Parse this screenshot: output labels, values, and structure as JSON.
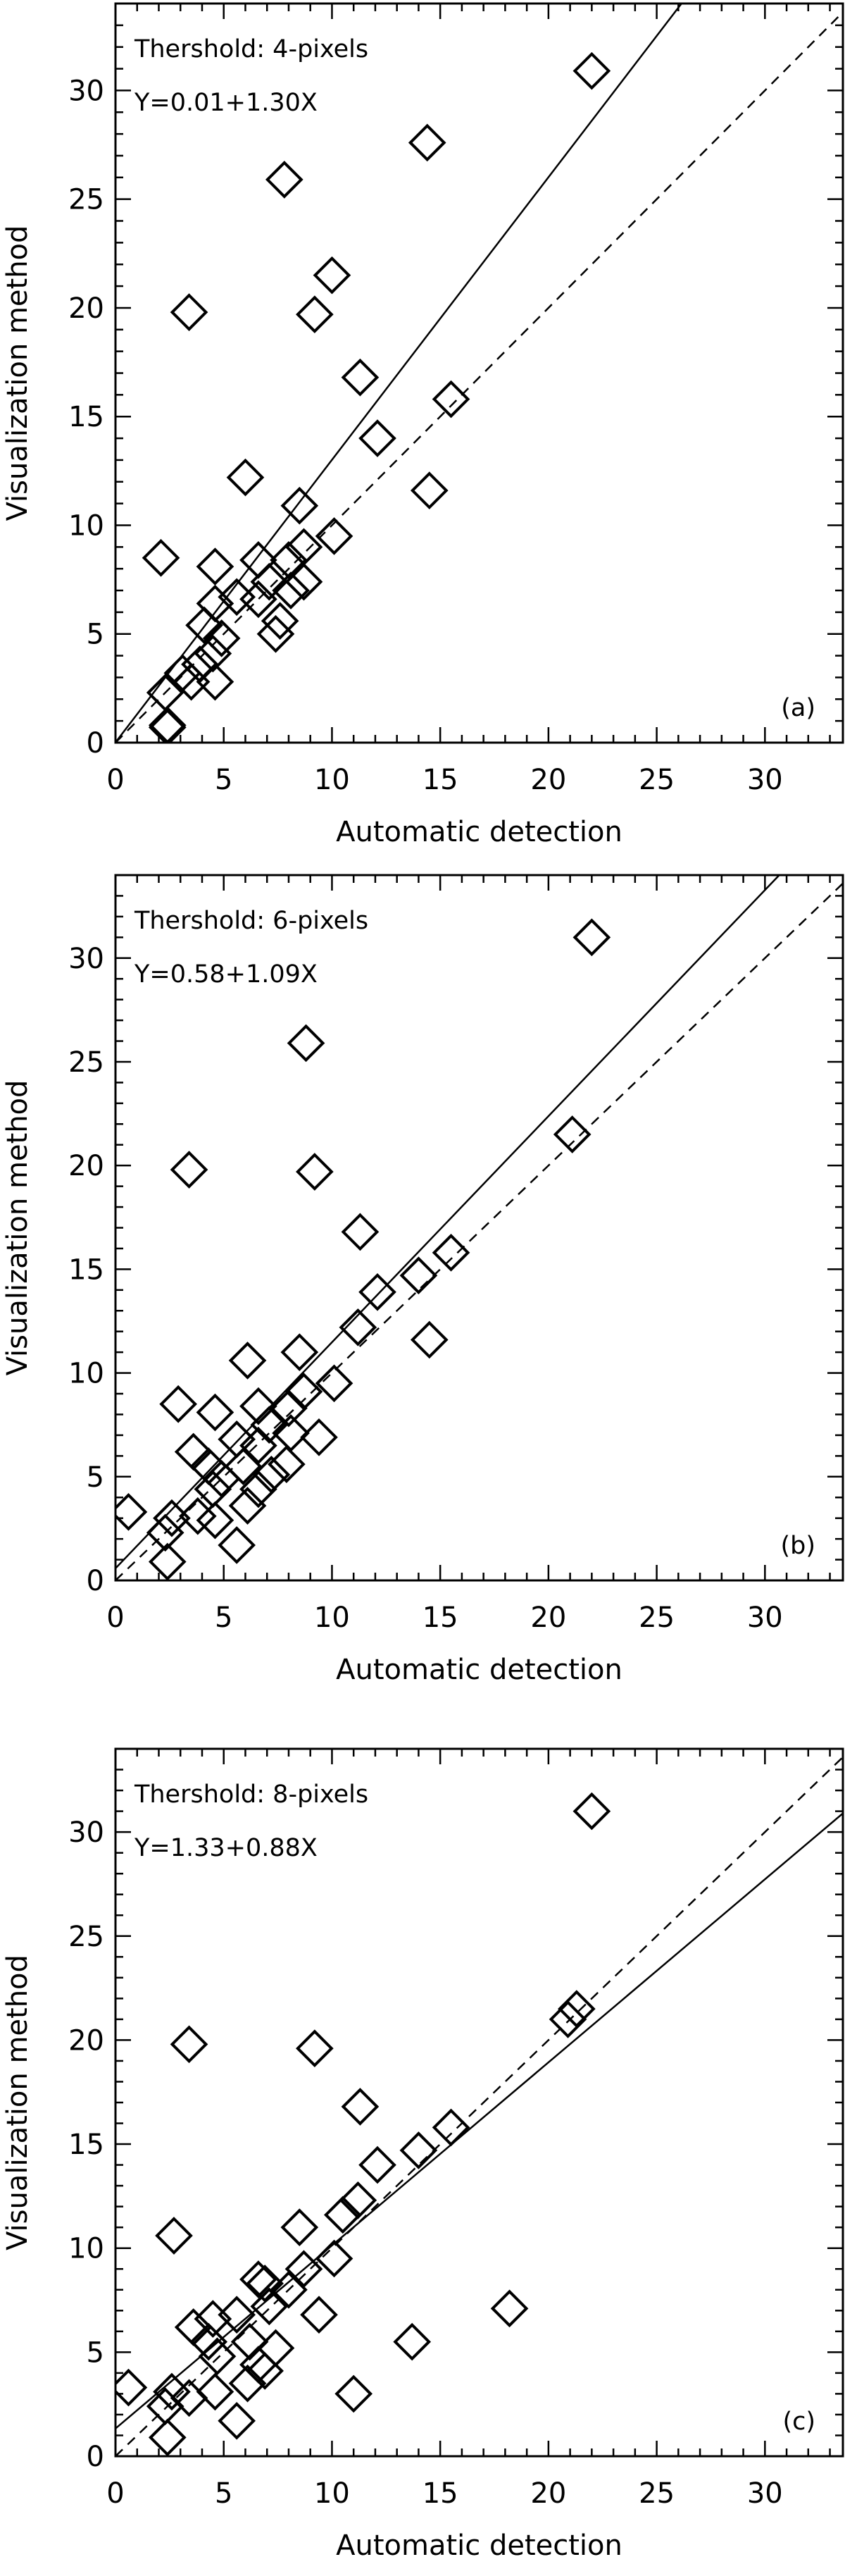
{
  "chart_data": [
    {
      "type": "scatter",
      "panel_label": "(a)",
      "annotation_threshold": "Thershold: 4-pixels",
      "annotation_fit": "Y=0.01+1.30X",
      "xlabel": "Automatic detection",
      "ylabel": "Visualization method",
      "xlim": [
        0,
        33.6
      ],
      "ylim": [
        0,
        34
      ],
      "xticks": [
        "0",
        "5",
        "10",
        "15",
        "20",
        "25",
        "30"
      ],
      "yticks": [
        "0",
        "5",
        "10",
        "15",
        "20",
        "25",
        "30"
      ],
      "marker": "diamond-open",
      "fit_line": {
        "intercept": 0.01,
        "slope": 1.3,
        "style": "solid"
      },
      "reference_line": {
        "intercept": 0,
        "slope": 1,
        "style": "dashed"
      },
      "points": [
        [
          22.0,
          30.9
        ],
        [
          14.4,
          27.6
        ],
        [
          7.8,
          25.9
        ],
        [
          10.0,
          21.5
        ],
        [
          3.4,
          19.8
        ],
        [
          9.2,
          19.7
        ],
        [
          11.3,
          16.8
        ],
        [
          15.5,
          15.8
        ],
        [
          12.1,
          14.0
        ],
        [
          6.0,
          12.2
        ],
        [
          14.5,
          11.6
        ],
        [
          8.5,
          10.9
        ],
        [
          10.1,
          9.5
        ],
        [
          2.1,
          8.5
        ],
        [
          4.6,
          8.1
        ],
        [
          6.6,
          8.4
        ],
        [
          8.7,
          9.0
        ],
        [
          8.0,
          8.4
        ],
        [
          7.1,
          7.4
        ],
        [
          5.6,
          6.7
        ],
        [
          6.6,
          6.6
        ],
        [
          8.7,
          7.4
        ],
        [
          8.1,
          7.0
        ],
        [
          4.6,
          6.4
        ],
        [
          4.1,
          5.4
        ],
        [
          7.6,
          5.6
        ],
        [
          7.4,
          5.0
        ],
        [
          4.9,
          4.8
        ],
        [
          4.5,
          4.1
        ],
        [
          3.9,
          3.6
        ],
        [
          3.1,
          3.2
        ],
        [
          3.5,
          2.8
        ],
        [
          4.6,
          2.8
        ],
        [
          2.3,
          2.3
        ],
        [
          2.4,
          0.8
        ],
        [
          2.4,
          0.7
        ]
      ]
    },
    {
      "type": "scatter",
      "panel_label": "(b)",
      "annotation_threshold": "Thershold: 6-pixels",
      "annotation_fit": "Y=0.58+1.09X",
      "xlabel": "Automatic detection",
      "ylabel": "Visualization method",
      "xlim": [
        0,
        33.6
      ],
      "ylim": [
        0,
        34
      ],
      "xticks": [
        "0",
        "5",
        "10",
        "15",
        "20",
        "25",
        "30"
      ],
      "yticks": [
        "0",
        "5",
        "10",
        "15",
        "20",
        "25",
        "30"
      ],
      "marker": "diamond-open",
      "fit_line": {
        "intercept": 0.58,
        "slope": 1.09,
        "style": "solid"
      },
      "reference_line": {
        "intercept": 0,
        "slope": 1,
        "style": "dashed"
      },
      "points": [
        [
          22.0,
          31.0
        ],
        [
          8.8,
          25.9
        ],
        [
          3.4,
          19.8
        ],
        [
          9.2,
          19.7
        ],
        [
          21.1,
          21.5
        ],
        [
          11.3,
          16.8
        ],
        [
          15.5,
          15.8
        ],
        [
          14.0,
          14.7
        ],
        [
          12.1,
          13.9
        ],
        [
          11.2,
          12.2
        ],
        [
          6.1,
          10.6
        ],
        [
          14.5,
          11.6
        ],
        [
          8.5,
          11.0
        ],
        [
          10.1,
          9.5
        ],
        [
          2.9,
          8.5
        ],
        [
          4.6,
          8.1
        ],
        [
          6.6,
          8.4
        ],
        [
          8.7,
          9.1
        ],
        [
          8.0,
          8.3
        ],
        [
          9.4,
          6.9
        ],
        [
          7.1,
          7.5
        ],
        [
          8.1,
          7.1
        ],
        [
          5.6,
          6.8
        ],
        [
          6.6,
          6.5
        ],
        [
          3.6,
          6.2
        ],
        [
          5.9,
          5.5
        ],
        [
          7.9,
          5.6
        ],
        [
          7.2,
          5.1
        ],
        [
          4.3,
          5.5
        ],
        [
          4.9,
          4.9
        ],
        [
          4.5,
          4.4
        ],
        [
          6.6,
          4.4
        ],
        [
          6.1,
          3.6
        ],
        [
          0.6,
          3.3
        ],
        [
          3.8,
          3.1
        ],
        [
          4.6,
          2.9
        ],
        [
          2.6,
          3.0
        ],
        [
          2.3,
          2.3
        ],
        [
          5.6,
          1.7
        ],
        [
          2.4,
          0.9
        ]
      ]
    },
    {
      "type": "scatter",
      "panel_label": "(c)",
      "annotation_threshold": "Thershold: 8-pixels",
      "annotation_fit": "Y=1.33+0.88X",
      "xlabel": "Automatic detection",
      "ylabel": "Visualization method",
      "xlim": [
        0,
        33.6
      ],
      "ylim": [
        0,
        34
      ],
      "xticks": [
        "0",
        "5",
        "10",
        "15",
        "20",
        "25",
        "30"
      ],
      "yticks": [
        "0",
        "5",
        "10",
        "15",
        "20",
        "25",
        "30"
      ],
      "marker": "diamond-open",
      "fit_line": {
        "intercept": 1.33,
        "slope": 0.88,
        "style": "solid"
      },
      "reference_line": {
        "intercept": 0,
        "slope": 1,
        "style": "dashed"
      },
      "points": [
        [
          22.0,
          31.0
        ],
        [
          3.4,
          19.8
        ],
        [
          9.2,
          19.6
        ],
        [
          20.9,
          21.0
        ],
        [
          21.3,
          21.5
        ],
        [
          11.3,
          16.8
        ],
        [
          15.5,
          15.8
        ],
        [
          14.0,
          14.7
        ],
        [
          12.1,
          14.0
        ],
        [
          11.2,
          12.3
        ],
        [
          10.5,
          11.6
        ],
        [
          2.7,
          10.6
        ],
        [
          8.5,
          11.0
        ],
        [
          10.1,
          9.5
        ],
        [
          8.7,
          9.0
        ],
        [
          6.6,
          8.5
        ],
        [
          6.9,
          8.3
        ],
        [
          8.0,
          8.0
        ],
        [
          7.1,
          7.2
        ],
        [
          9.4,
          6.8
        ],
        [
          18.2,
          7.1
        ],
        [
          5.6,
          6.8
        ],
        [
          4.5,
          6.6
        ],
        [
          3.6,
          6.2
        ],
        [
          6.2,
          5.5
        ],
        [
          7.4,
          5.2
        ],
        [
          13.7,
          5.5
        ],
        [
          4.3,
          5.5
        ],
        [
          4.7,
          4.8
        ],
        [
          6.6,
          4.4
        ],
        [
          6.9,
          4.1
        ],
        [
          6.1,
          3.5
        ],
        [
          4.6,
          3.1
        ],
        [
          11.0,
          3.0
        ],
        [
          0.6,
          3.3
        ],
        [
          2.6,
          3.1
        ],
        [
          3.4,
          2.8
        ],
        [
          2.3,
          2.4
        ],
        [
          5.6,
          1.7
        ],
        [
          2.4,
          0.9
        ]
      ]
    }
  ]
}
